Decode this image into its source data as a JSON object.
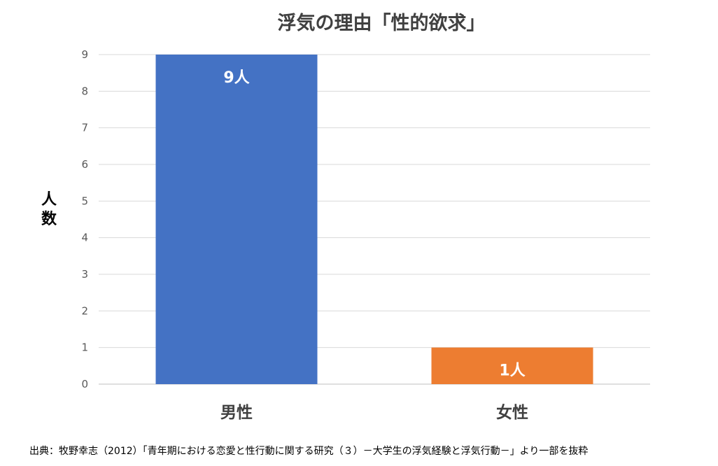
{
  "chart_data": {
    "type": "bar",
    "title": "浮気の理由「性的欲求」",
    "categories": [
      "男性",
      "女性"
    ],
    "values": [
      9,
      1
    ],
    "data_labels": [
      "9人",
      "1人"
    ],
    "colors": [
      "#4472c4",
      "#ed7d31"
    ],
    "xlabel": "",
    "ylabel": "人数",
    "ylim": [
      0,
      9
    ],
    "y_ticks": [
      "0",
      "1",
      "2",
      "3",
      "4",
      "5",
      "6",
      "7",
      "8",
      "9"
    ],
    "grid": true,
    "legend": "none"
  },
  "source": "出典：牧野幸志（2012）「青年期における恋愛と性行動に関する研究（３）－大学生の浮気経験と浮気行動－」より一部を抜粋"
}
